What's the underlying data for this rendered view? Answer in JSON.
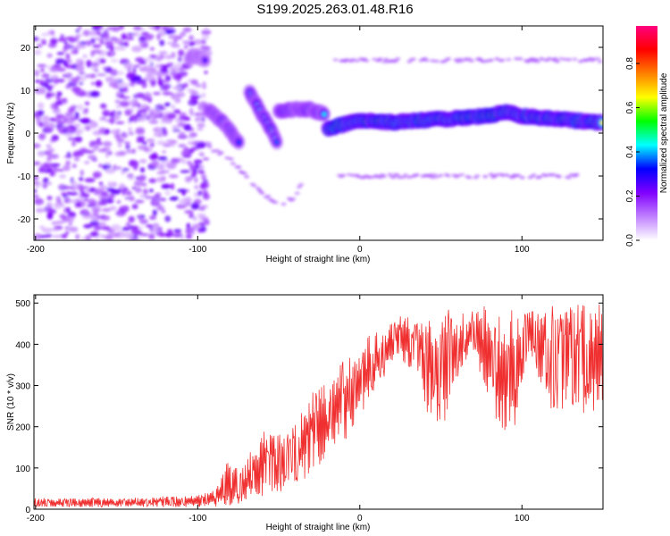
{
  "title": "S199.2025.263.01.48.R16",
  "chart_data": [
    {
      "type": "heatmap",
      "xlabel": "Height of straight line (km)",
      "ylabel": "Frequency (Hz)",
      "xlim": [
        -201,
        150
      ],
      "ylim": [
        -25,
        25
      ],
      "x_ticks": [
        -200,
        -100,
        0,
        100
      ],
      "y_ticks": [
        -20,
        -10,
        0,
        10,
        20
      ],
      "x_tick_labels": [
        "-200",
        "-100",
        "0",
        "100"
      ],
      "y_tick_labels": [
        "-20",
        "-10",
        "0",
        "10",
        "20"
      ],
      "grid": false,
      "colorbar": {
        "label": "Normalized spectral amplitude",
        "range": [
          0,
          0.97
        ],
        "ticks": [
          0,
          0.2,
          0.4,
          0.6,
          0.8
        ],
        "tick_labels": [
          "0.0",
          "0.2",
          "0.4",
          "0.6",
          "0.8"
        ],
        "colormap": [
          "#ffffff",
          "#c080ff",
          "#8000ff",
          "#0000ff",
          "#00ffff",
          "#00ff00",
          "#ffff00",
          "#ff8000",
          "#ff0000",
          "#ff0080"
        ]
      },
      "noise_region": {
        "x": [
          -201,
          -94
        ],
        "y": [
          -25,
          25
        ],
        "amplitude": [
          0.05,
          0.25
        ]
      },
      "ridges": [
        {
          "x": [
            -105,
            -100,
            -95
          ],
          "y": [
            17.5,
            18,
            17
          ],
          "amplitude": 0.35
        },
        {
          "x": [
            -93,
            -86,
            -80,
            -74
          ],
          "y": [
            5.5,
            3,
            0.5,
            -2.5
          ],
          "amplitude": 0.45
        },
        {
          "x": [
            -68,
            -62,
            -56,
            -51
          ],
          "y": [
            9.5,
            5.5,
            1.5,
            -2
          ],
          "amplitude": 0.5
        },
        {
          "x": [
            -50,
            -40,
            -30,
            -22
          ],
          "y": [
            5,
            5.5,
            5.5,
            4.5
          ],
          "amplitude": 0.5
        },
        {
          "x": [
            -20,
            -10,
            0,
            20,
            40,
            60,
            80,
            90,
            100,
            115,
            130,
            150
          ],
          "y": [
            1,
            2,
            3,
            2.5,
            3,
            3.5,
            4,
            5,
            4,
            3.5,
            3,
            2.5
          ],
          "amplitude": 0.85
        }
      ],
      "faint_lines": [
        {
          "x": [
            -15,
            -5,
            20,
            45,
            70,
            95,
            125,
            150
          ],
          "y": [
            17,
            17,
            17,
            17,
            17,
            17,
            17,
            17
          ],
          "amplitude": 0.05
        },
        {
          "x": [
            -15,
            10,
            35,
            60,
            85,
            110,
            135
          ],
          "y": [
            -10,
            -10,
            -10,
            -10,
            -10,
            -10,
            -10
          ],
          "amplitude": 0.05
        },
        {
          "x": [
            -95,
            -80,
            -70,
            -60,
            -50,
            -40,
            -35
          ],
          "y": [
            -3,
            -6,
            -10,
            -14,
            -17,
            -15,
            -11
          ],
          "amplitude": 0.1
        }
      ]
    },
    {
      "type": "line",
      "xlabel": "Height of straight line (km)",
      "ylabel": "SNR (10 * v/v)",
      "xlim": [
        -201,
        150
      ],
      "ylim": [
        0,
        520
      ],
      "x_ticks": [
        -200,
        -100,
        0,
        100
      ],
      "y_ticks": [
        0,
        100,
        200,
        300,
        400,
        500
      ],
      "x_tick_labels": [
        "-200",
        "-100",
        "0",
        "100"
      ],
      "y_tick_labels": [
        "0",
        "100",
        "200",
        "300",
        "400",
        "500"
      ],
      "grid": false,
      "series": [
        {
          "color": "#f03030",
          "x": [
            -201,
            -190,
            -180,
            -170,
            -160,
            -150,
            -140,
            -130,
            -120,
            -110,
            -100,
            -90,
            -85,
            -80,
            -75,
            -70,
            -65,
            -60,
            -55,
            -50,
            -45,
            -40,
            -35,
            -30,
            -25,
            -20,
            -15,
            -10,
            -5,
            0,
            5,
            10,
            15,
            20,
            25,
            30,
            35,
            40,
            45,
            50,
            55,
            60,
            65,
            70,
            75,
            80,
            85,
            90,
            95,
            100,
            105,
            110,
            115,
            120,
            125,
            130,
            135,
            140,
            145,
            150
          ],
          "y_min": [
            5,
            5,
            5,
            5,
            5,
            5,
            5,
            5,
            5,
            5,
            5,
            5,
            5,
            5,
            10,
            15,
            20,
            25,
            30,
            40,
            50,
            60,
            70,
            85,
            100,
            120,
            140,
            160,
            180,
            220,
            260,
            300,
            320,
            360,
            370,
            340,
            300,
            240,
            220,
            200,
            230,
            300,
            360,
            380,
            320,
            250,
            200,
            180,
            190,
            300,
            380,
            320,
            250,
            230,
            240,
            250,
            230,
            220,
            240,
            250
          ],
          "y_max": [
            30,
            25,
            28,
            25,
            30,
            25,
            28,
            30,
            32,
            30,
            35,
            45,
            80,
            140,
            110,
            130,
            150,
            200,
            180,
            180,
            200,
            210,
            250,
            280,
            300,
            320,
            340,
            360,
            380,
            400,
            420,
            430,
            440,
            460,
            480,
            470,
            460,
            470,
            480,
            470,
            490,
            490,
            480,
            490,
            500,
            480,
            470,
            490,
            480,
            470,
            480,
            490,
            480,
            500,
            490,
            510,
            500,
            490,
            500,
            500
          ]
        }
      ]
    }
  ]
}
